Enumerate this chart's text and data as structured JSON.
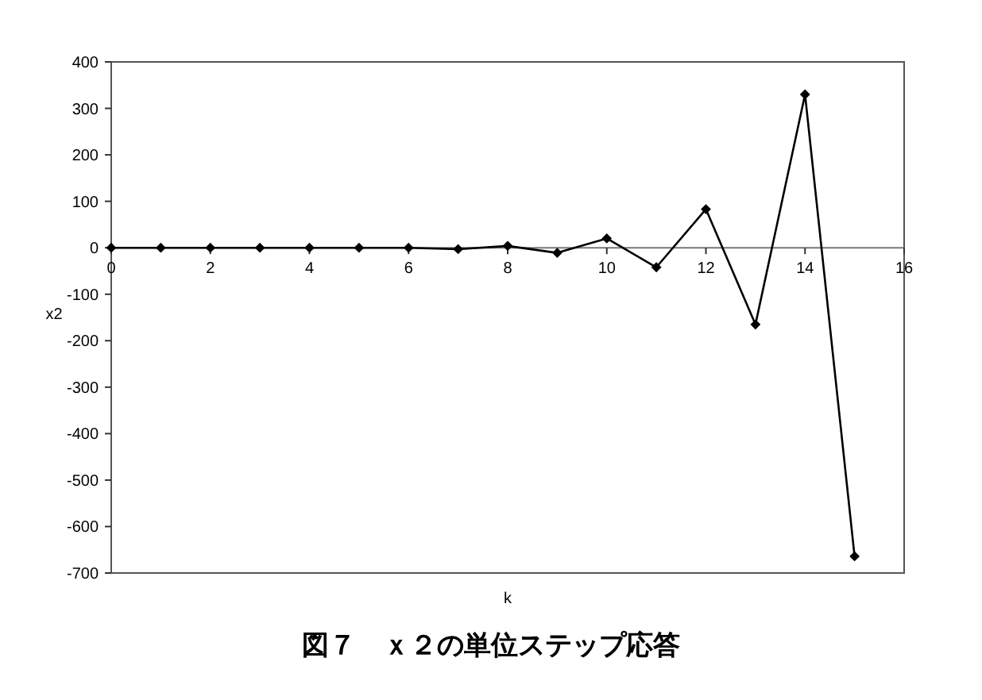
{
  "chart_data": {
    "type": "line",
    "title": "図７　ｘ２の単位ステップ応答",
    "xlabel": "k",
    "ylabel": "x2",
    "x": [
      0,
      1,
      2,
      3,
      4,
      5,
      6,
      7,
      8,
      9,
      10,
      11,
      12,
      13,
      14,
      15
    ],
    "series": [
      {
        "color": "#000000",
        "values": [
          0,
          0,
          0,
          0,
          0,
          0,
          0,
          -3,
          4,
          -11,
          20,
          -42,
          83,
          -165,
          330,
          -664
        ]
      }
    ],
    "xlim": [
      0,
      16
    ],
    "ylim": [
      -700,
      400
    ],
    "xticks": [
      0,
      2,
      4,
      6,
      8,
      10,
      12,
      14,
      16
    ],
    "yticks": [
      -700,
      -600,
      -500,
      -400,
      -300,
      -200,
      -100,
      0,
      100,
      200,
      300,
      400
    ],
    "marker": "diamond",
    "line_style": "solid"
  }
}
